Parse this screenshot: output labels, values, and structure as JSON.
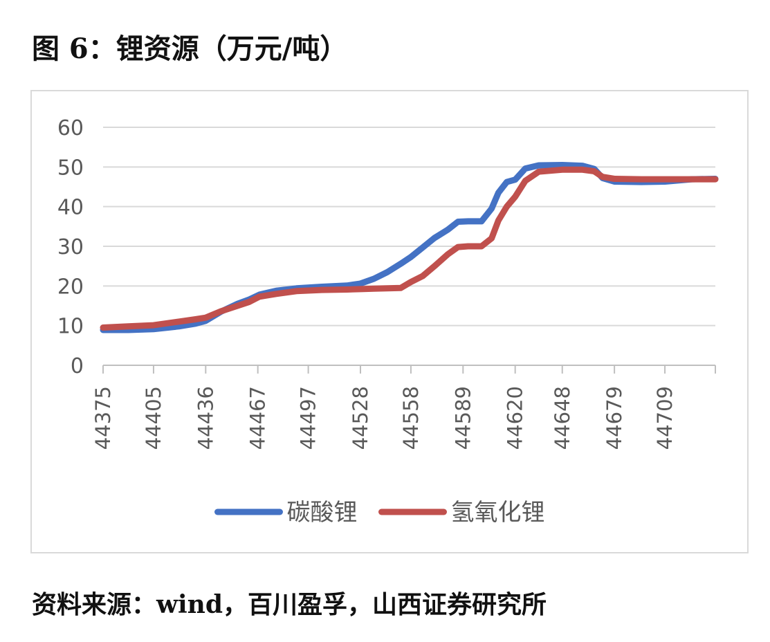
{
  "figure": {
    "title": "图 6：锂资源（万元/吨）",
    "source": "资料来源：wind，百川盈孚，山西证券研究所"
  },
  "chart_data": {
    "type": "line",
    "title": "",
    "xlabel": "",
    "ylabel": "",
    "ylim": [
      0,
      60
    ],
    "yticks": [
      0,
      10,
      20,
      30,
      40,
      50,
      60
    ],
    "xlim": [
      44375,
      44739
    ],
    "xticks": [
      44375,
      44405,
      44436,
      44467,
      44497,
      44528,
      44558,
      44589,
      44620,
      44648,
      44679,
      44709
    ],
    "grid": true,
    "legend_position": "bottom",
    "series": [
      {
        "name": "碳酸锂",
        "color": "#4472c4",
        "x": [
          44375,
          44390,
          44405,
          44420,
          44430,
          44436,
          44445,
          44455,
          44462,
          44468,
          44478,
          44490,
          44505,
          44520,
          44528,
          44536,
          44544,
          44552,
          44558,
          44565,
          44572,
          44580,
          44586,
          44592,
          44600,
          44606,
          44610,
          44615,
          44620,
          44626,
          44634,
          44648,
          44660,
          44667,
          44672,
          44679,
          44695,
          44709,
          44725,
          44739
        ],
        "y": [
          8.9,
          8.9,
          9.1,
          9.8,
          10.5,
          11.2,
          13.5,
          15.5,
          16.6,
          17.8,
          18.8,
          19.4,
          19.8,
          20.1,
          20.6,
          21.8,
          23.5,
          25.6,
          27.3,
          29.7,
          32.1,
          34.2,
          36.2,
          36.3,
          36.3,
          39.5,
          43.5,
          46.2,
          46.8,
          49.6,
          50.4,
          50.5,
          50.3,
          49.5,
          47.2,
          46.3,
          46.2,
          46.3,
          46.9,
          47.0
        ]
      },
      {
        "name": "氢氧化锂",
        "color": "#c0504d",
        "x": [
          44375,
          44390,
          44405,
          44420,
          44430,
          44436,
          44445,
          44455,
          44462,
          44468,
          44478,
          44490,
          44505,
          44520,
          44528,
          44536,
          44544,
          44552,
          44558,
          44565,
          44572,
          44580,
          44586,
          44592,
          44600,
          44606,
          44610,
          44615,
          44620,
          44626,
          44634,
          44648,
          44660,
          44667,
          44672,
          44679,
          44695,
          44709,
          44725,
          44739
        ],
        "y": [
          9.5,
          9.8,
          10.1,
          11.0,
          11.6,
          12.0,
          13.6,
          15.0,
          16.0,
          17.3,
          18.0,
          18.7,
          19.0,
          19.1,
          19.2,
          19.3,
          19.4,
          19.5,
          21.0,
          22.5,
          25.0,
          28.0,
          29.8,
          30.0,
          30.0,
          32.0,
          36.5,
          40.0,
          42.5,
          46.5,
          48.8,
          49.3,
          49.3,
          48.9,
          47.5,
          47.0,
          46.9,
          46.9,
          46.9,
          46.9
        ]
      }
    ]
  }
}
